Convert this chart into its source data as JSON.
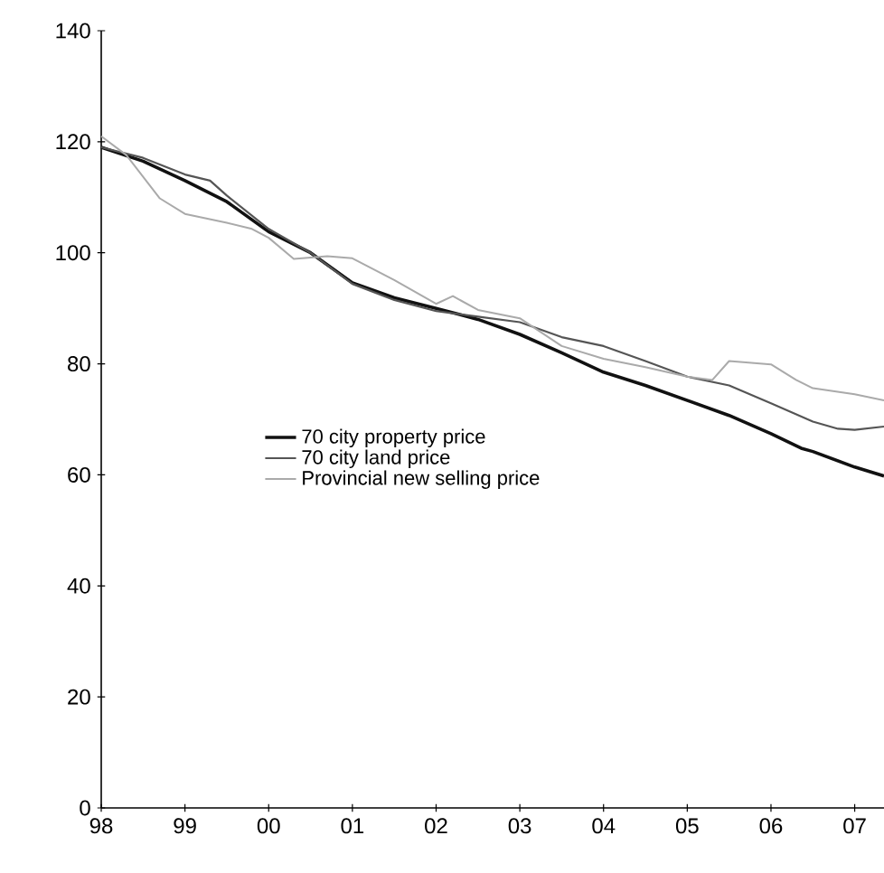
{
  "chart_data": {
    "type": "line",
    "xlim": [
      1998,
      2007.35
    ],
    "ylim": [
      0,
      140
    ],
    "xticks": [
      {
        "value": 1998,
        "label": "98"
      },
      {
        "value": 1999,
        "label": "99"
      },
      {
        "value": 2000,
        "label": "00"
      },
      {
        "value": 2001,
        "label": "01"
      },
      {
        "value": 2002,
        "label": "02"
      },
      {
        "value": 2003,
        "label": "03"
      },
      {
        "value": 2004,
        "label": "04"
      },
      {
        "value": 2005,
        "label": "05"
      },
      {
        "value": 2006,
        "label": "06"
      },
      {
        "value": 2007,
        "label": "07"
      }
    ],
    "yticks": [
      0,
      20,
      40,
      60,
      80,
      100,
      120,
      140
    ],
    "grid": false,
    "legend": "center",
    "marker": "none",
    "line_style": "solid",
    "series": [
      {
        "name": "70 city property price",
        "color": "#111111",
        "x": [
          1998,
          1998.5,
          1999,
          1999.5,
          2000,
          2000.5,
          2001,
          2001.5,
          2002,
          2002.5,
          2003,
          2003.5,
          2004,
          2004.5,
          2005,
          2005.5,
          2006,
          2006.36,
          2006.5,
          2007,
          2007.35
        ],
        "values": [
          119,
          116.5,
          113,
          109.2,
          103.8,
          100,
          94.6,
          91.9,
          90,
          88,
          85.3,
          82,
          78.5,
          76.1,
          73.4,
          70.7,
          67.4,
          64.8,
          64.2,
          61.4,
          59.8
        ]
      },
      {
        "name": "70 city land price",
        "color": "#555555",
        "x": [
          1998,
          1998.5,
          1999,
          1999.3,
          1999.5,
          2000,
          2000.5,
          2001,
          2001.5,
          2002,
          2002.5,
          2003,
          2003.5,
          2004,
          2004.5,
          2005,
          2005.5,
          2006,
          2006.5,
          2006.8,
          2007,
          2007.35
        ],
        "values": [
          119,
          117.1,
          114.1,
          113,
          110.3,
          104.3,
          100,
          94.4,
          91.5,
          89.5,
          88.5,
          87.5,
          84.8,
          83.2,
          80.5,
          77.7,
          76.1,
          72.9,
          69.6,
          68.3,
          68.1,
          68.7
        ]
      },
      {
        "name": "Provincial new selling price",
        "color": "#aaaaaa",
        "x": [
          1998,
          1998.3,
          1998.7,
          1999,
          1999.5,
          1999.8,
          2000,
          2000.3,
          2000.7,
          2001,
          2001.5,
          2002,
          2002.2,
          2002.5,
          2003,
          2003.5,
          2004,
          2004.5,
          2005,
          2005.3,
          2005.5,
          2006,
          2006.3,
          2006.5,
          2007,
          2007.35
        ],
        "values": [
          121,
          117.6,
          109.8,
          107,
          105.4,
          104.3,
          102.7,
          98.9,
          99.4,
          99,
          95.1,
          90.8,
          92.2,
          89.7,
          88.2,
          83.2,
          80.9,
          79.4,
          77.7,
          77.1,
          80.5,
          79.9,
          77.1,
          75.6,
          74.5,
          73.4
        ]
      }
    ]
  }
}
